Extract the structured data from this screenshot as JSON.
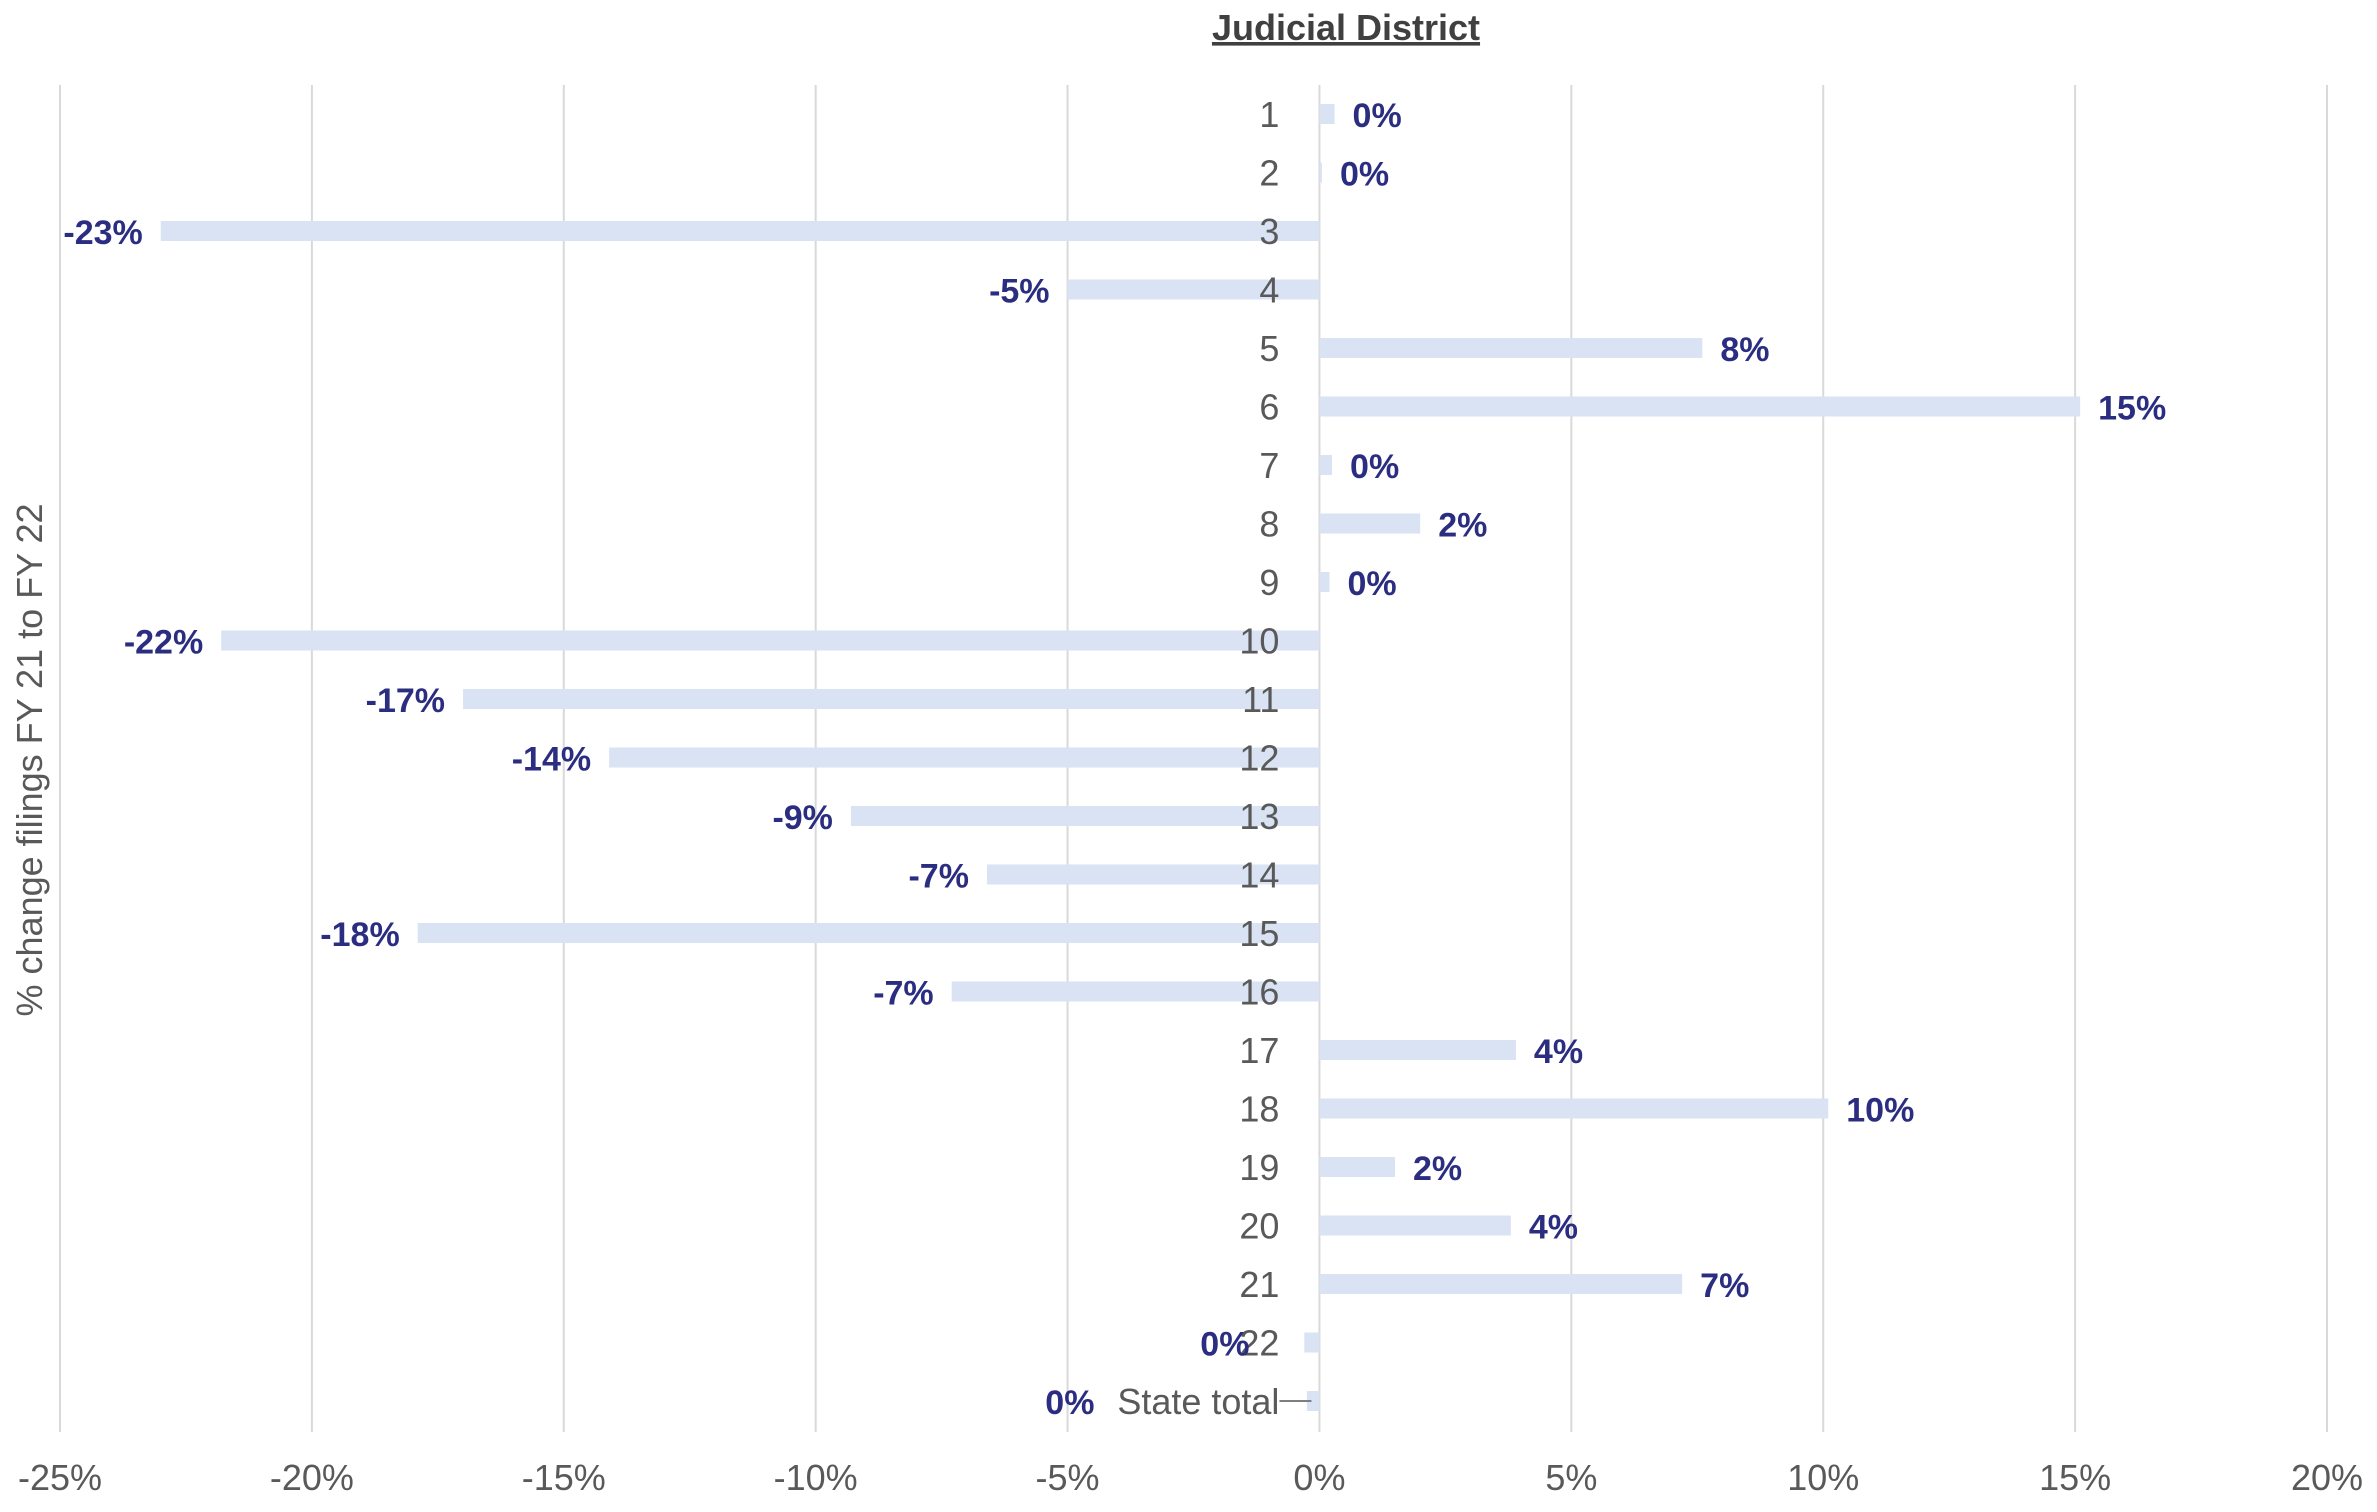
{
  "chart_data": {
    "type": "bar",
    "orientation": "horizontal",
    "title": "Judicial District",
    "xlabel": "",
    "ylabel": "% change filings FY 21 to FY 22",
    "xlim": [
      -25,
      20
    ],
    "x_ticks": [
      "-25%",
      "-20%",
      "-15%",
      "-10%",
      "-5%",
      "0%",
      "5%",
      "10%",
      "15%",
      "20%"
    ],
    "grid": true,
    "categories": [
      "1",
      "2",
      "3",
      "4",
      "5",
      "6",
      "7",
      "8",
      "9",
      "10",
      "11",
      "12",
      "13",
      "14",
      "15",
      "16",
      "17",
      "18",
      "19",
      "20",
      "21",
      "22",
      "State total"
    ],
    "values": [
      0.3,
      0.05,
      -23,
      -5,
      7.6,
      15.1,
      0.25,
      2,
      0.2,
      -21.8,
      -17,
      -14.1,
      -9.3,
      -6.6,
      -17.9,
      -7.3,
      3.9,
      10.1,
      1.5,
      3.8,
      7.2,
      -0.3,
      -0.25
    ],
    "data_labels": [
      "0%",
      "0%",
      "-23%",
      "-5%",
      "8%",
      "15%",
      "0%",
      "2%",
      "0%",
      "-22%",
      "-17%",
      "-14%",
      "-9%",
      "-7%",
      "-18%",
      "-7%",
      "4%",
      "10%",
      "2%",
      "4%",
      "7%",
      "0%",
      "0%"
    ],
    "colors": {
      "bar": "#dae3f3",
      "label": "#2b2e80",
      "grid": "#d9d9d9"
    }
  }
}
